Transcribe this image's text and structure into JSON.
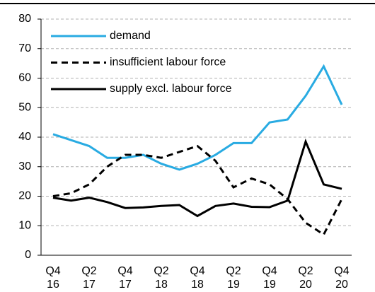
{
  "chart_data": {
    "type": "line",
    "categories": [
      "Q4\n16",
      null,
      "Q2\n17",
      null,
      "Q4\n17",
      null,
      "Q2\n18",
      null,
      "Q4\n18",
      null,
      "Q2\n19",
      null,
      "Q4\n19",
      null,
      "Q2\n20",
      null,
      "Q4\n20"
    ],
    "series": [
      {
        "name": "demand",
        "color": "#29abe2",
        "dash": "solid",
        "values": [
          41,
          39,
          37,
          33,
          33,
          34,
          31,
          29,
          31,
          34,
          38,
          38,
          45,
          46,
          54,
          64,
          51
        ]
      },
      {
        "name": "insufficient labour force",
        "color": "#000000",
        "dash": "dashed",
        "values": [
          20,
          21,
          24,
          30,
          34,
          34,
          33,
          35,
          37,
          32,
          23,
          26,
          24,
          19,
          11,
          7,
          19
        ]
      },
      {
        "name": "supply excl. labour force",
        "color": "#000000",
        "dash": "solid",
        "values": [
          19.5,
          18.5,
          19.5,
          18,
          16,
          16.2,
          16.7,
          17,
          13.3,
          16.7,
          17.5,
          16.4,
          16.3,
          18.5,
          38.5,
          24,
          22.5
        ]
      }
    ],
    "ylim": [
      0,
      80
    ],
    "yticks": [
      0,
      10,
      20,
      30,
      40,
      50,
      60,
      70,
      80
    ],
    "grid": true,
    "legend": "upper left"
  }
}
